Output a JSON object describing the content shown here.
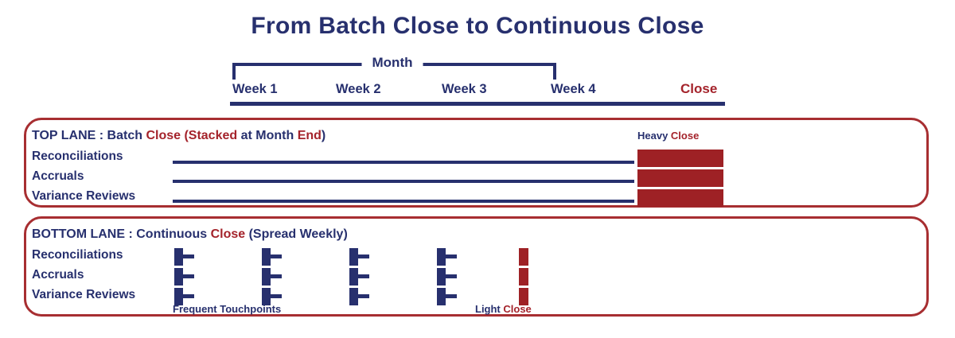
{
  "title": "From Batch Close to Continuous Close",
  "colors": {
    "navy": "#27306e",
    "red": "#a4232b",
    "bar_red": "#9e2125",
    "border_red": "#a72e31"
  },
  "timeline": {
    "bracket_label": "Month",
    "week_labels": [
      "Week 1",
      "Week 2",
      "Week 3",
      "Week 4"
    ],
    "close_label": "Close"
  },
  "top_lane": {
    "title_segments": [
      {
        "text": "TOP LANE : Batch ",
        "color": "navy"
      },
      {
        "text": "Close ",
        "color": "red"
      },
      {
        "text": "(Stacked ",
        "color": "red"
      },
      {
        "text": "at Month ",
        "color": "navy"
      },
      {
        "text": "End",
        "color": "red"
      },
      {
        "text": ")",
        "color": "navy"
      }
    ],
    "annotation_segments": [
      {
        "text": "Heavy ",
        "color": "navy"
      },
      {
        "text": "Close",
        "color": "red"
      }
    ],
    "rows": [
      "Reconciliations",
      "Accruals",
      "Variance Reviews"
    ]
  },
  "bottom_lane": {
    "title_segments": [
      {
        "text": "BOTTOM LANE : Continuous ",
        "color": "navy"
      },
      {
        "text": "Close ",
        "color": "red"
      },
      {
        "text": "(Spread Weekly)",
        "color": "navy"
      }
    ],
    "rows": [
      "Reconciliations",
      "Accruals",
      "Variance Reviews"
    ],
    "touchpoints_label": "Frequent Touchpoints",
    "close_annotation_segments": [
      {
        "text": "Light ",
        "color": "navy"
      },
      {
        "text": "Close",
        "color": "red"
      }
    ]
  }
}
